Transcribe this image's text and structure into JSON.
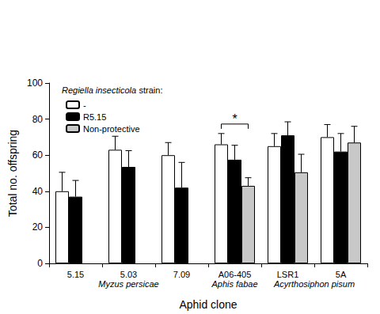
{
  "chart_data": {
    "type": "bar",
    "categories": [
      "5.15",
      "5.03",
      "7.09",
      "A06-405",
      "LSR1",
      "5A"
    ],
    "series": [
      {
        "name": "-",
        "color": "#ffffff",
        "values": [
          40,
          63,
          60,
          66,
          65,
          70
        ],
        "errors": [
          10.5,
          7.5,
          7,
          6,
          7,
          7
        ]
      },
      {
        "name": "R5.15",
        "color": "#000000",
        "values": [
          37,
          53.5,
          42,
          57.5,
          71,
          62
        ],
        "errors": [
          9,
          9,
          14,
          8,
          7.5,
          10
        ]
      },
      {
        "name": "Non-protective",
        "color": "#c8c8c8",
        "values": [
          null,
          null,
          null,
          43,
          50.5,
          67
        ],
        "errors": [
          null,
          null,
          null,
          4.5,
          10,
          9
        ]
      }
    ],
    "ylim": [
      0,
      100
    ],
    "yticks": [
      0,
      20,
      40,
      60,
      80,
      100
    ],
    "ylabel": "Total no. offspring",
    "xlabel": "Aphid clone",
    "legend": "upper left",
    "legend_title": "Regiella insecticola strain:",
    "grid": false,
    "category_groups": [
      {
        "label": "Myzus persicae",
        "categories": [
          "5.15",
          "5.03",
          "7.09"
        ]
      },
      {
        "label": "Aphis fabae",
        "categories": [
          "A06-405"
        ]
      },
      {
        "label": "Acyrthosiphon pisum",
        "categories": [
          "LSR1",
          "5A"
        ]
      }
    ],
    "annotations": [
      {
        "text": "*",
        "category": "A06-405",
        "series": [
          "-",
          "Non-protective"
        ]
      }
    ]
  }
}
